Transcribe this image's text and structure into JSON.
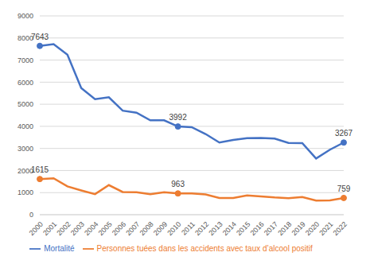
{
  "chart_data": {
    "type": "line",
    "categories": [
      "2000",
      "2001",
      "2002",
      "2003",
      "2004",
      "2005",
      "2006",
      "2007",
      "2008",
      "2009",
      "2010",
      "2011",
      "2012",
      "2013",
      "2014",
      "2015",
      "2016",
      "2017",
      "2018",
      "2019",
      "2020",
      "2021",
      "2022"
    ],
    "series": [
      {
        "name": "Mortalité",
        "color": "#4472c4",
        "values": [
          7643,
          7720,
          7242,
          5731,
          5232,
          5318,
          4709,
          4620,
          4275,
          4273,
          3992,
          3963,
          3653,
          3268,
          3384,
          3461,
          3477,
          3448,
          3248,
          3244,
          2541,
          2944,
          3267
        ],
        "value_labels": [
          "7643",
          null,
          null,
          null,
          null,
          null,
          null,
          null,
          null,
          null,
          "3992",
          null,
          null,
          null,
          null,
          null,
          null,
          null,
          null,
          null,
          null,
          null,
          "3267"
        ]
      },
      {
        "name": "Personnes tuées dans les accidents avec taux d’alcool positif",
        "color": "#ed7d31",
        "values": [
          1615,
          1650,
          1280,
          1100,
          930,
          1340,
          1030,
          1020,
          930,
          1020,
          963,
          960,
          920,
          760,
          760,
          870,
          830,
          780,
          750,
          800,
          640,
          650,
          759
        ],
        "value_labels": [
          "1615",
          null,
          null,
          null,
          null,
          null,
          null,
          null,
          null,
          null,
          "963",
          null,
          null,
          null,
          null,
          null,
          null,
          null,
          null,
          null,
          null,
          null,
          "759"
        ]
      }
    ],
    "ylim": [
      0,
      9000
    ],
    "yticks": [
      0,
      1000,
      2000,
      3000,
      4000,
      5000,
      6000,
      7000,
      8000,
      9000
    ],
    "grid": true,
    "legend": "bottom",
    "marker": "circle"
  }
}
